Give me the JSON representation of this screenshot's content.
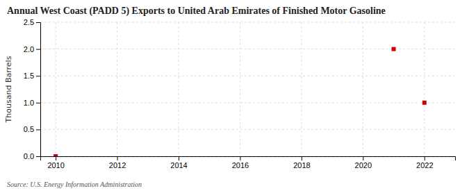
{
  "chart_data": {
    "type": "scatter",
    "title": "Annual West Coast (PADD 5) Exports to United Arab Emirates of Finished Motor Gasoline",
    "ylabel": "Thousand Barrels",
    "source": "Source: U.S. Energy Information Administration",
    "x": [
      2010,
      2021,
      2022
    ],
    "values": [
      0.0,
      2.0,
      1.0
    ],
    "color": "#cc0000",
    "marker": "square",
    "xlim": [
      2009.5,
      2023.0
    ],
    "ylim": [
      0,
      2.5
    ],
    "xticks": [
      2010,
      2012,
      2014,
      2016,
      2018,
      2020,
      2022
    ],
    "yticks": [
      {
        "value": 0.0,
        "label": "0.0"
      },
      0.5,
      {
        "value": 1.0,
        "label": "1.0"
      },
      1.5,
      {
        "value": 2.0,
        "label": "2.0"
      },
      2.5
    ],
    "grid": true
  }
}
